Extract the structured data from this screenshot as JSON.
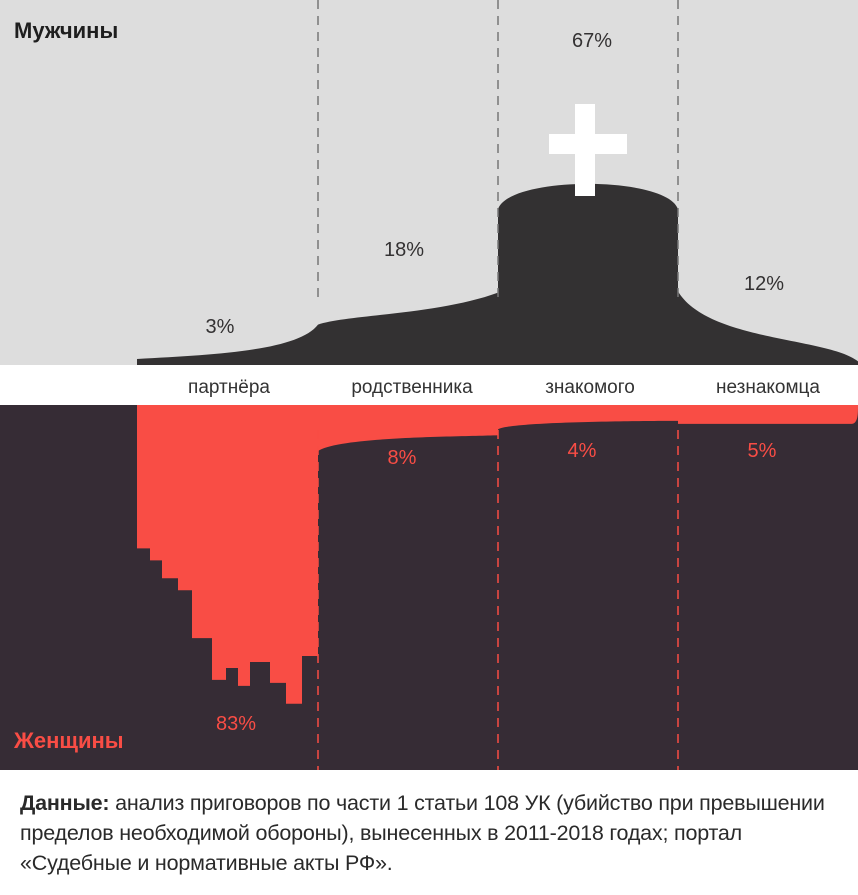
{
  "chart_data": {
    "type": "bar",
    "categories": [
      "партнёра",
      "родственника",
      "знакомого",
      "незнакомца"
    ],
    "series": [
      {
        "name": "Мужчины",
        "values": [
          3,
          18,
          67,
          12
        ],
        "labels": [
          "3%",
          "18%",
          "67%",
          "12%"
        ]
      },
      {
        "name": "Женщины",
        "values": [
          83,
          8,
          4,
          5
        ],
        "labels": [
          "83%",
          "8%",
          "4%",
          "5%"
        ]
      }
    ],
    "colors": {
      "men_fill": "#333132",
      "men_bg": "#dddddd",
      "women_fill": "#f94d45",
      "women_bg": "#362c35",
      "men_label": "#333132",
      "women_label": "#f94d45",
      "cross": "#ffffff"
    },
    "icon": "cross-icon",
    "grid": false,
    "legend": "none"
  },
  "footnote": {
    "label": "Данные:",
    "text": " анализ приговоров по части 1 статьи 108 УК (убийство при превышении пределов необходимой обороны), вынесенных в 2011-2018 годах; портал «Судебные и нормативные акты РФ»."
  }
}
